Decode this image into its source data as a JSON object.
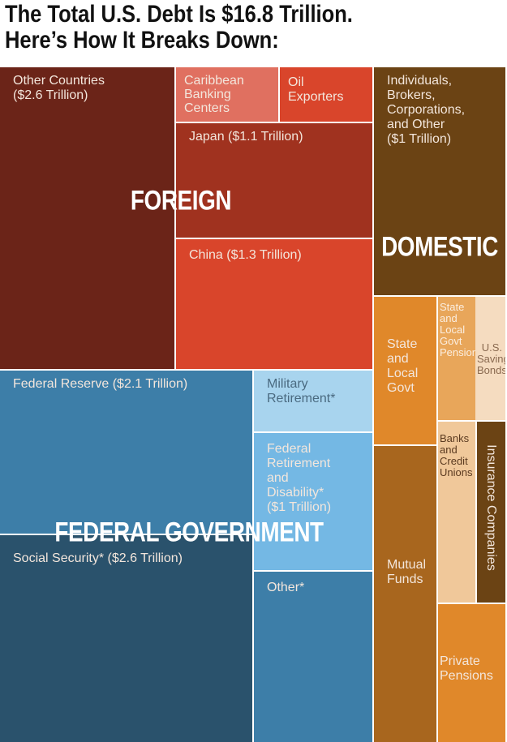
{
  "header": {
    "title": "The Total U.S. Debt Is $16.8 Trillion.\nHere’s How It Breaks Down:"
  },
  "groups": {
    "foreign": "FOREIGN",
    "domestic": "DOMESTIC",
    "federal": "FEDERAL GOVERNMENT"
  },
  "cells": {
    "other_countries": "Other Countries\n($2.6 Trillion)",
    "caribbean": "Caribbean\nBanking\nCenters",
    "oil": "Oil\nExporters",
    "japan": "Japan ($1.1 Trillion)",
    "china": "China ($1.3 Trillion)",
    "individuals": "Individuals,\nBrokers,\nCorporations,\nand Other\n($1 Trillion)",
    "state_local": "State\nand\nLocal\nGovt",
    "state_pensions": "State\nand\nLocal\nGovt\nPensions",
    "savings_bonds": "U.S.\nSavings\nBonds",
    "mutual_funds": "Mutual\nFunds",
    "banks": "Banks\nand\nCredit\nUnions",
    "insurance": "Insurance Companies",
    "private_pensions": "Private\nPensions",
    "federal_reserve": "Federal Reserve ($2.1 Trillion)",
    "social_security": "Social Security* ($2.6 Trillion)",
    "military": "Military\nRetirement*",
    "fed_retirement": "Federal\nRetirement\nand\nDisability*\n($1 Trillion)",
    "other": "Other*"
  }
}
